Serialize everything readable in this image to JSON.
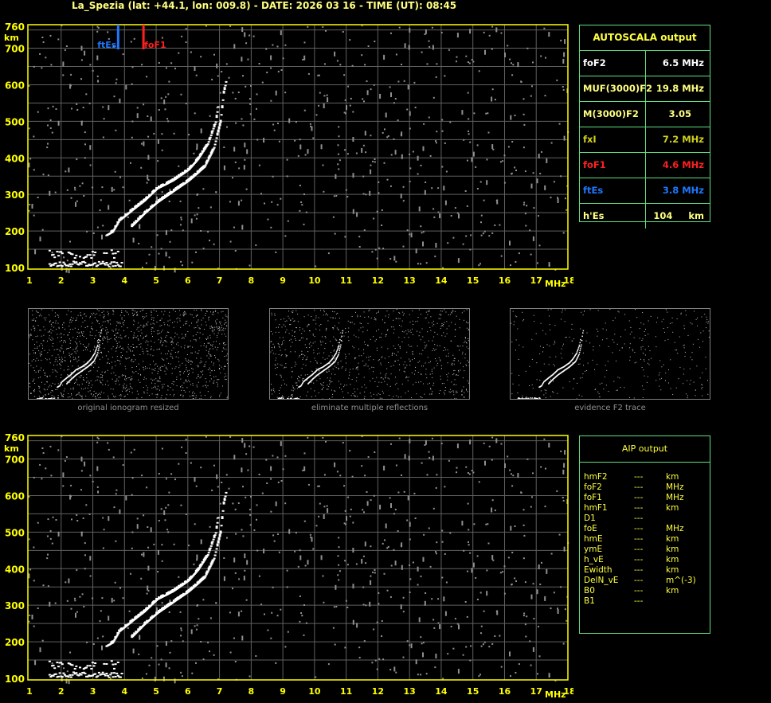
{
  "header": {
    "title": "La_Spezia (lat: +44.1, lon: 009.8) - DATE: 2026 03 16 - TIME (UT): 08:45"
  },
  "chart_data": {
    "type": "scatter",
    "xlabel": "MHz",
    "ylabel": "km",
    "xlim": [
      1,
      18
    ],
    "ylim": [
      100,
      760
    ],
    "x_ticks": [
      "1",
      "2",
      "3",
      "4",
      "5",
      "6",
      "7",
      "8",
      "9",
      "10",
      "11",
      "12",
      "13",
      "14",
      "15",
      "16",
      "17",
      "18"
    ],
    "y_ticks": [
      "100",
      "200",
      "300",
      "400",
      "500",
      "600",
      "700",
      "760"
    ],
    "grid": true,
    "markers": [
      {
        "name": "ftEs",
        "freq": 3.8,
        "color": "#1e78ff"
      },
      {
        "name": "foF1",
        "freq": 4.6,
        "color": "#ff2020"
      }
    ],
    "traces": {
      "Es": [
        [
          1.8,
          112
        ],
        [
          2.2,
          110
        ],
        [
          2.6,
          112
        ],
        [
          3.0,
          113
        ],
        [
          3.4,
          112
        ],
        [
          3.8,
          115
        ]
      ],
      "F_O": [
        [
          3.4,
          190
        ],
        [
          3.6,
          200
        ],
        [
          3.8,
          230
        ],
        [
          4.2,
          258
        ],
        [
          4.6,
          285
        ],
        [
          5.0,
          318
        ],
        [
          5.5,
          340
        ],
        [
          6.0,
          370
        ],
        [
          6.3,
          400
        ],
        [
          6.6,
          440
        ],
        [
          6.85,
          500
        ],
        [
          6.95,
          555
        ]
      ],
      "F_X": [
        [
          4.2,
          215
        ],
        [
          4.6,
          250
        ],
        [
          5.0,
          280
        ],
        [
          5.5,
          310
        ],
        [
          6.0,
          340
        ],
        [
          6.5,
          378
        ],
        [
          6.8,
          430
        ],
        [
          7.0,
          500
        ],
        [
          7.1,
          580
        ],
        [
          7.2,
          620
        ]
      ]
    },
    "colors": {
      "axis": "#ffff00",
      "grid": "#606060",
      "echo": "#ffffff",
      "noise": "#909090"
    }
  },
  "autoscala": {
    "title": "AUTOSCALA output",
    "rows": [
      {
        "k": "foF2",
        "v": "6.5 MHz",
        "color": "#ffffff"
      },
      {
        "k": "MUF(3000)F2",
        "v": "19.8 MHz",
        "color": "#ffff80"
      },
      {
        "k": "M(3000)F2",
        "v": "3.05    ",
        "color": "#ffff80"
      },
      {
        "k": "fxI",
        "v": "7.2 MHz",
        "color": "#d0d020"
      },
      {
        "k": "foF1",
        "v": "4.6 MHz",
        "color": "#ff2020"
      },
      {
        "k": "ftEs",
        "v": "3.8 MHz",
        "color": "#1e78ff"
      },
      {
        "k": "h'Es",
        "v": "104     km",
        "color": "#ffff80"
      }
    ]
  },
  "thumbs": [
    "original ionogram resized",
    "eliminate multiple reflections",
    "evidence F2 trace"
  ],
  "aip": {
    "title": "AIP output",
    "rows": [
      [
        "hmF2",
        "---",
        "km"
      ],
      [
        "foF2",
        "---",
        "MHz"
      ],
      [
        "foF1",
        "---",
        "MHz"
      ],
      [
        "hmF1",
        "---",
        "km"
      ],
      [
        "D1",
        "---",
        ""
      ],
      [
        "foE",
        "---",
        "MHz"
      ],
      [
        "hmE",
        "---",
        "km"
      ],
      [
        "ymE",
        "---",
        "km"
      ],
      [
        "h_vE",
        "---",
        "km"
      ],
      [
        "Ewidth",
        "---",
        "km"
      ],
      [
        "DelN_vE",
        "---",
        "m^(-3)"
      ],
      [
        "B0",
        "---",
        "km"
      ],
      [
        "B1",
        "---",
        ""
      ]
    ]
  }
}
